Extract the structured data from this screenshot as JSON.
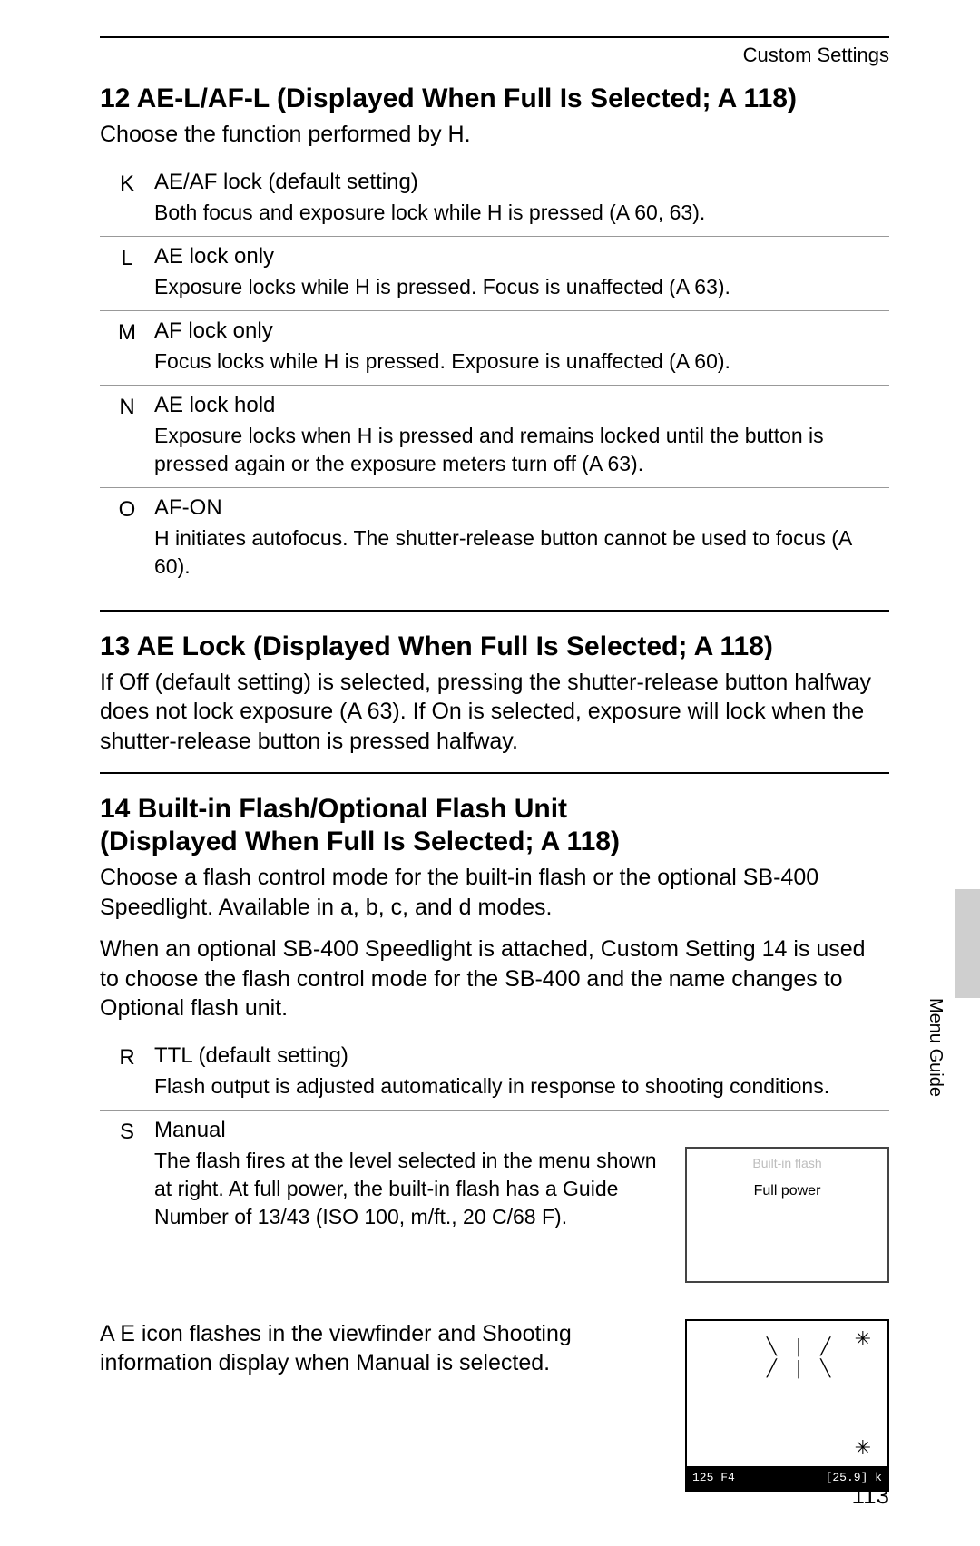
{
  "header": {
    "section": "Custom Settings"
  },
  "section12": {
    "title": "12 AE-L/AF-L (Displayed When Full Is Selected; A 118)",
    "intro": "Choose the function performed by H.",
    "options": [
      {
        "key": "K",
        "name": "AE/AF lock (default setting)",
        "desc": "Both focus and exposure lock while H is pressed (A 60, 63)."
      },
      {
        "key": "L",
        "name": "AE lock only",
        "desc": "Exposure locks while H is pressed. Focus is unaffected (A 63)."
      },
      {
        "key": "M",
        "name": "AF lock only",
        "desc": "Focus locks while H is pressed. Exposure is unaffected (A 60)."
      },
      {
        "key": "N",
        "name": "AE lock hold",
        "desc": "Exposure locks when H is pressed and remains locked until the button is pressed again or the exposure meters turn off (A 63)."
      },
      {
        "key": "O",
        "name": "AF-ON",
        "desc": "H initiates autofocus. The shutter-release button cannot be used to focus (A 60)."
      }
    ]
  },
  "section13": {
    "title": "13 AE Lock (Displayed When Full Is Selected; A 118)",
    "body": "If Off (default setting) is selected, pressing the shutter-release button halfway does not lock exposure (A 63). If On is selected, exposure will lock when the shutter-release button is pressed halfway."
  },
  "section14": {
    "title_l1": "14 Built-in Flash/Optional Flash Unit",
    "title_l2": "(Displayed When Full Is Selected; A 118)",
    "intro1": "Choose a flash control mode for the built-in flash or the optional SB-400 Speedlight. Available in a, b, c, and d modes.",
    "intro2": "When an optional SB-400 Speedlight is attached, Custom Setting 14 is used to choose the flash control mode for the SB-400 and the name changes to Optional flash unit.",
    "options": [
      {
        "key": "R",
        "name": "TTL (default setting)",
        "desc": "Flash output is adjusted automatically in response to shooting conditions."
      },
      {
        "key": "S",
        "name": "Manual",
        "desc": "The flash fires at the level selected in the menu shown at right. At full power, the built-in flash has a Guide Number of 13/43 (ISO 100, m/ft., 20 C/68 F)."
      }
    ],
    "mini": {
      "title": "Built-in flash",
      "value": "Full power"
    },
    "note": "A E icon flashes in the viewfinder and Shooting information display when Manual is selected.",
    "vf": {
      "left": "125  F4",
      "right": "[25.9] k"
    }
  },
  "side": {
    "label": "Menu Guide"
  },
  "page_number": "113"
}
